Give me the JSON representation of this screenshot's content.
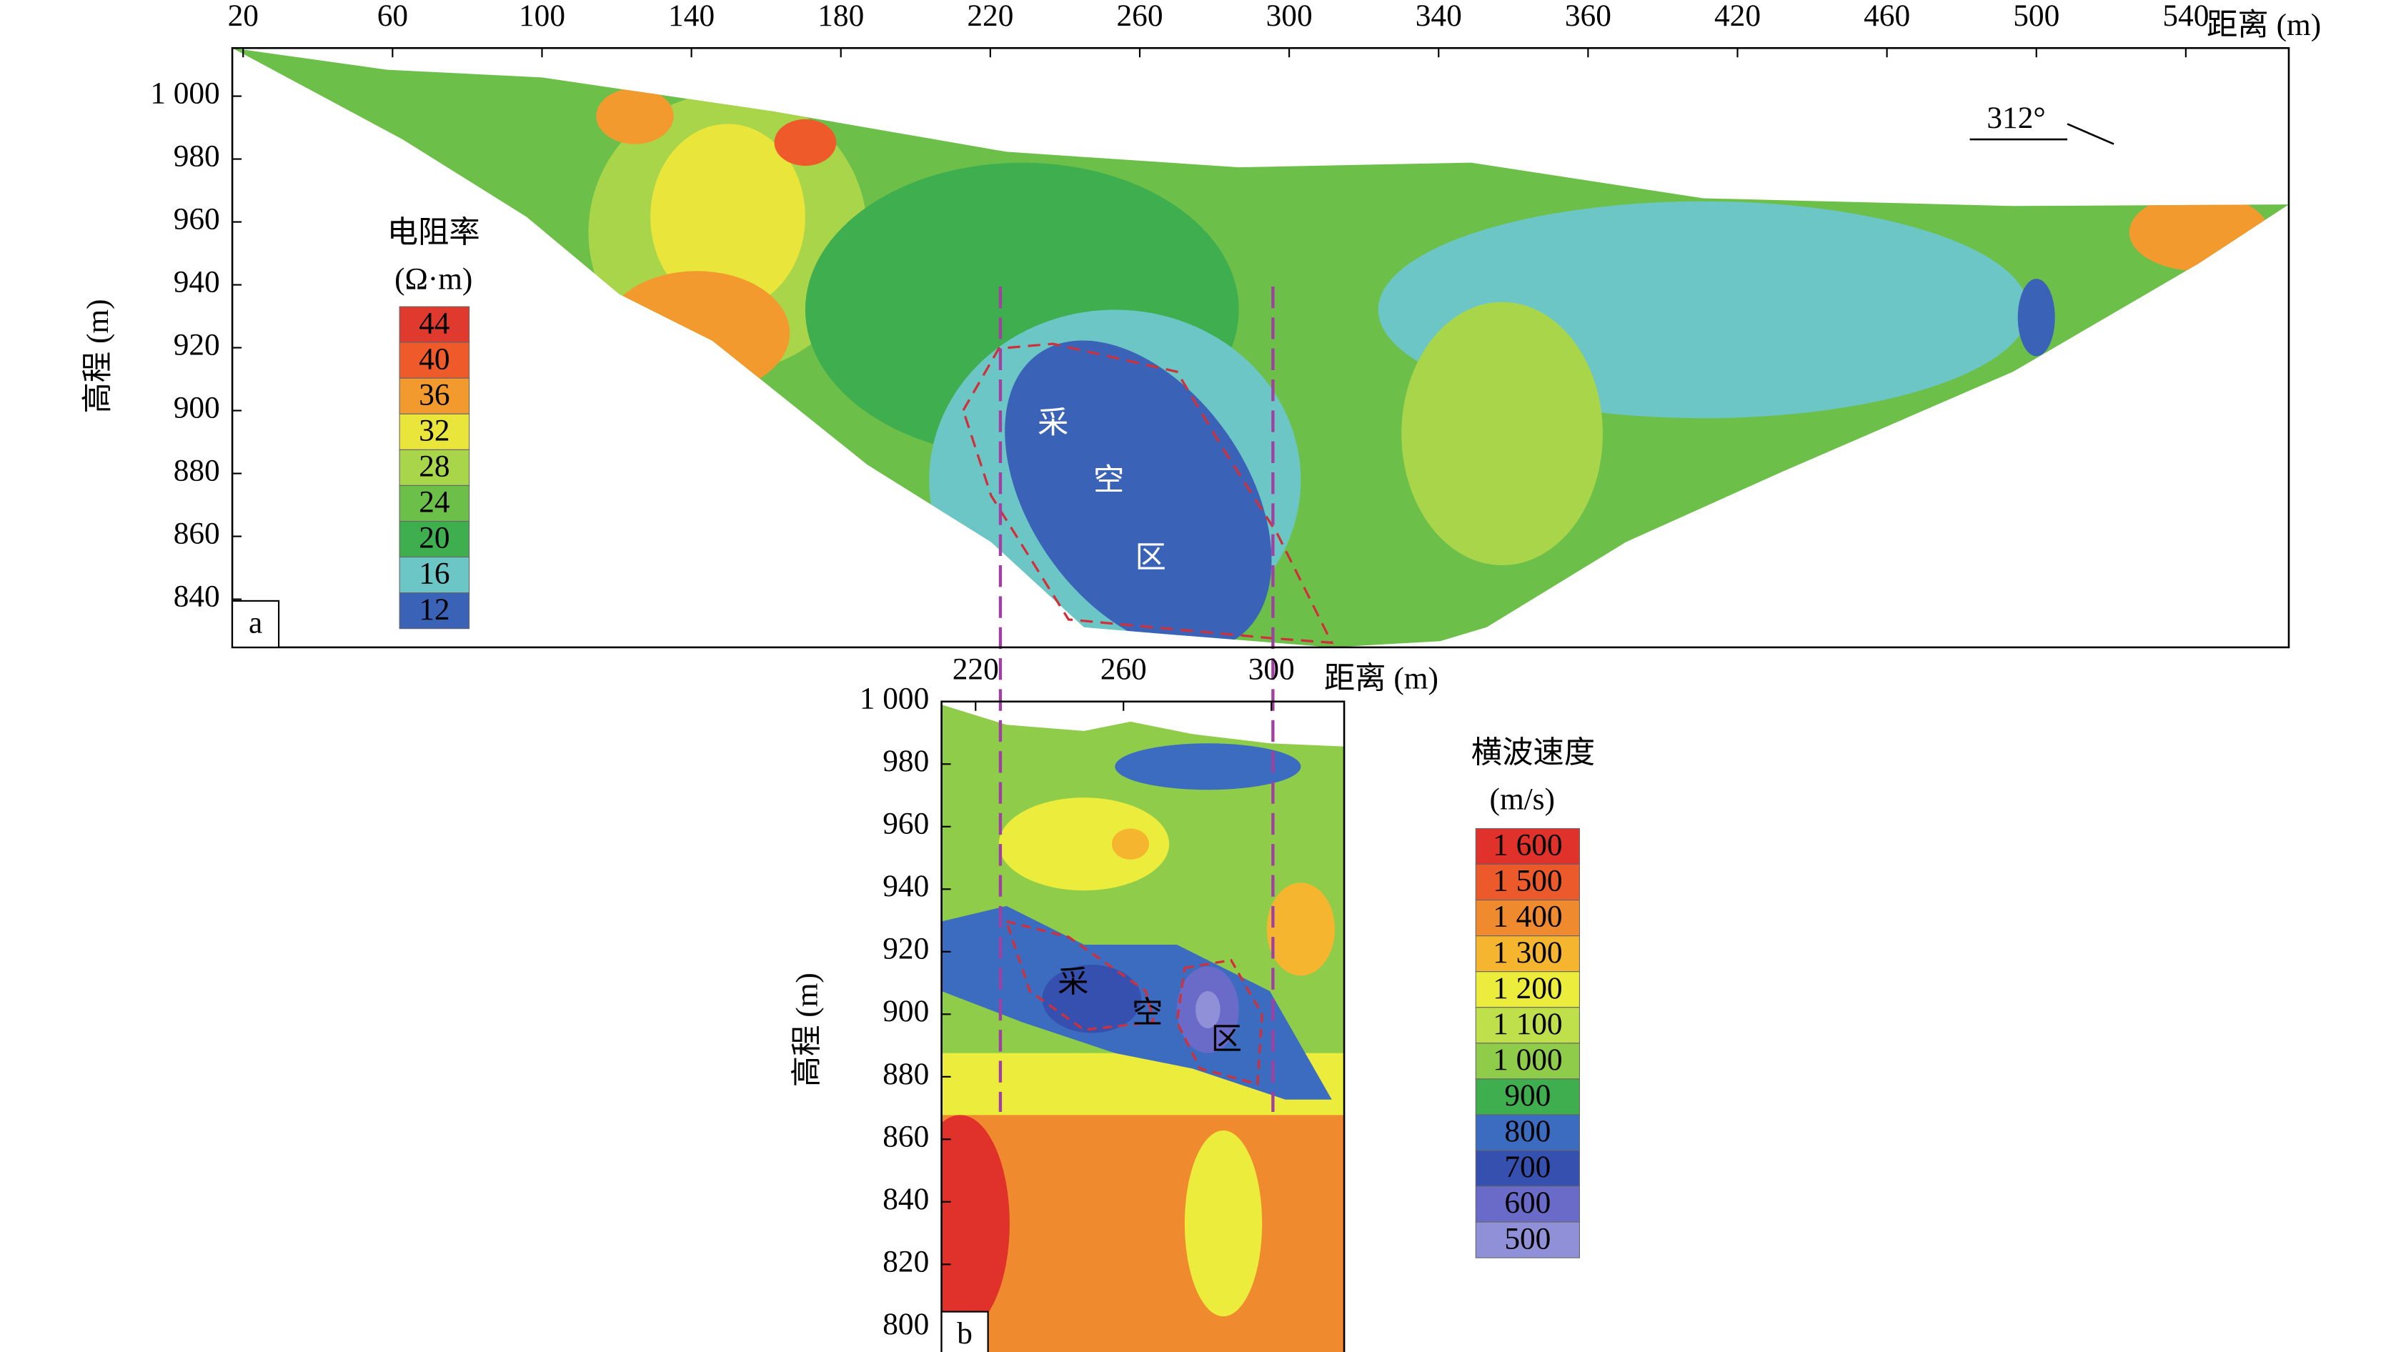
{
  "chart_data": [
    {
      "type": "contour",
      "panel_label": "a",
      "x_label": "距离 (m)",
      "y_label": "高程 (m)",
      "categories": [
        20,
        60,
        100,
        140,
        180,
        220,
        260,
        300,
        340,
        360,
        420,
        460,
        500,
        540
      ],
      "ylim": [
        824.7,
        1015.3
      ],
      "yticks": [
        840,
        860,
        880,
        900,
        920,
        940,
        960,
        980,
        {
          "value": 1000,
          "label": "1 000"
        }
      ],
      "annotations": [
        "312°",
        "采",
        "空",
        "区"
      ],
      "colorbar": {
        "title": "电阻率",
        "unit": "(Ω·m)",
        "values": [
          44,
          40,
          36,
          32,
          28,
          24,
          20,
          16,
          12
        ],
        "colors": [
          "#e03a2e",
          "#ee5a2a",
          "#f39a2f",
          "#e9e53b",
          "#a9d54a",
          "#6cc04a",
          "#3fae4f",
          "#6cc6c6",
          "#3a63b8"
        ]
      }
    },
    {
      "type": "contour",
      "panel_label": "b",
      "x_label": "距离 (m)",
      "y_label": "高程 (m)",
      "categories": [
        220,
        260,
        300
      ],
      "ylim": [
        790,
        1000
      ],
      "yticks": [
        800,
        820,
        840,
        860,
        880,
        900,
        920,
        940,
        960,
        980,
        {
          "value": 1000,
          "label": "1 000"
        }
      ],
      "annotations": [
        "采",
        "空",
        "区"
      ],
      "colorbar": {
        "title": "横波速度",
        "unit": "(m/s)",
        "values": [
          1600,
          1500,
          1400,
          1300,
          1200,
          1100,
          1000,
          900,
          800,
          700,
          600,
          500
        ],
        "value_labels": [
          "1 600",
          "1 500",
          "1 400",
          "1 300",
          "1 200",
          "1 100",
          "1 000",
          "900",
          "800",
          "700",
          "600",
          "500"
        ],
        "colors": [
          "#e0312b",
          "#ec5a2c",
          "#f08a2e",
          "#f5b52f",
          "#ecec3c",
          "#bfe04a",
          "#8fcc4a",
          "#3fae4f",
          "#3b6cc0",
          "#3650b0",
          "#6a6ac8",
          "#9090d8"
        ]
      }
    }
  ]
}
